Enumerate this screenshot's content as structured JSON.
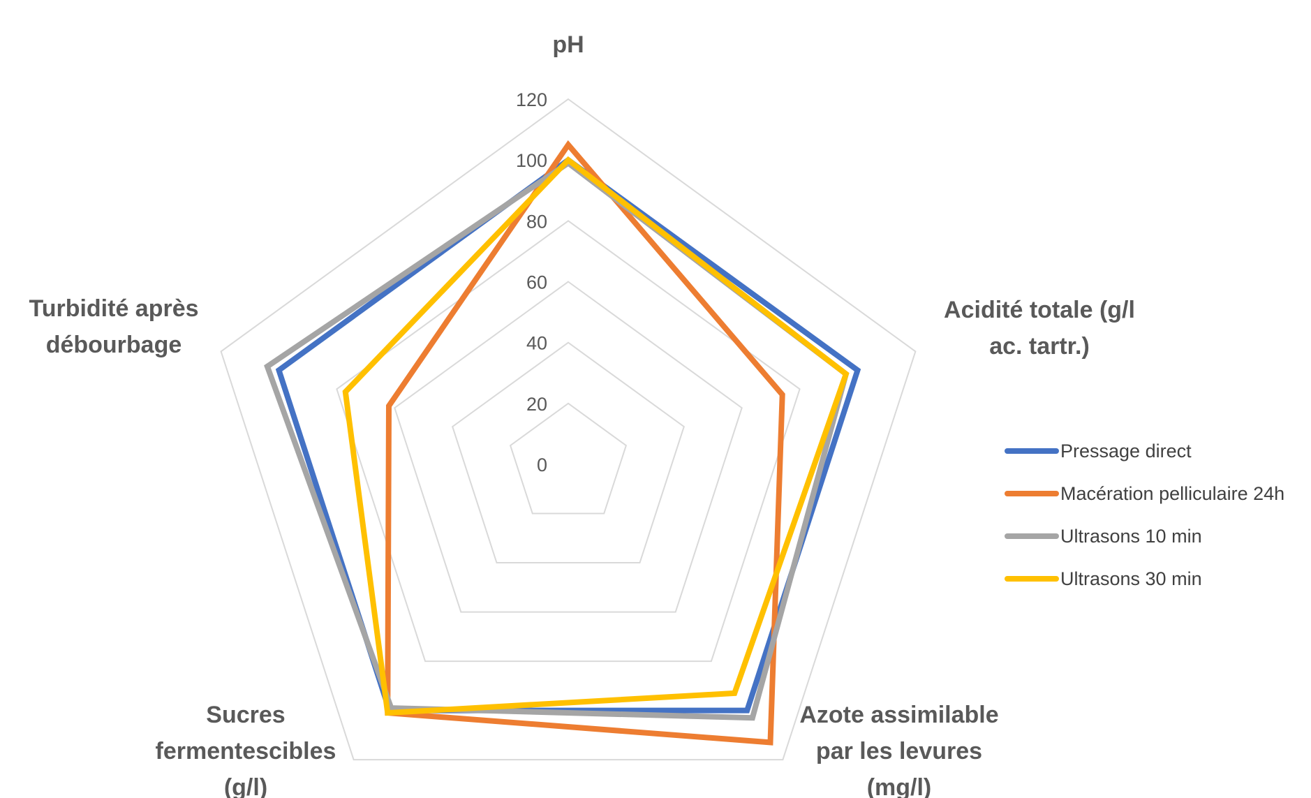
{
  "chart_data": {
    "type": "radar",
    "title": "",
    "axes": [
      "pH",
      "Acidité totale (g/l ac. tartr.)",
      "Azote assimilable par les levures (mg/l)",
      "Sucres fermentescibles (g/l)",
      "Turbidité après débourbage"
    ],
    "axis_label_lines": [
      [
        "pH"
      ],
      [
        "Acidité totale (g/l",
        "ac. tartr.)"
      ],
      [
        "Azote assimilable",
        "par les levures",
        "(mg/l)"
      ],
      [
        "Sucres",
        "fermentescibles",
        "(g/l)"
      ],
      [
        "Turbidité après",
        "débourbage"
      ]
    ],
    "ticks": [
      0,
      20,
      40,
      60,
      80,
      100,
      120
    ],
    "tick_labels": [
      "0",
      "20",
      "40",
      "60",
      "80",
      "100",
      "120"
    ],
    "rlim": [
      0,
      120
    ],
    "grid": true,
    "legend_position": "right",
    "series": [
      {
        "name": "Pressage direct",
        "color": "#4472C4",
        "values": [
          100,
          100,
          100,
          100,
          100
        ]
      },
      {
        "name": "Macération pelliculaire 24h",
        "color": "#ED7D31",
        "values": [
          105,
          74,
          113,
          101,
          62
        ]
      },
      {
        "name": "Ultrasons 10 min",
        "color": "#A5A5A5",
        "values": [
          99,
          96,
          103,
          99,
          104
        ]
      },
      {
        "name": "Ultrasons 30 min",
        "color": "#FFC000",
        "values": [
          100,
          96,
          93,
          101,
          77
        ]
      }
    ]
  }
}
